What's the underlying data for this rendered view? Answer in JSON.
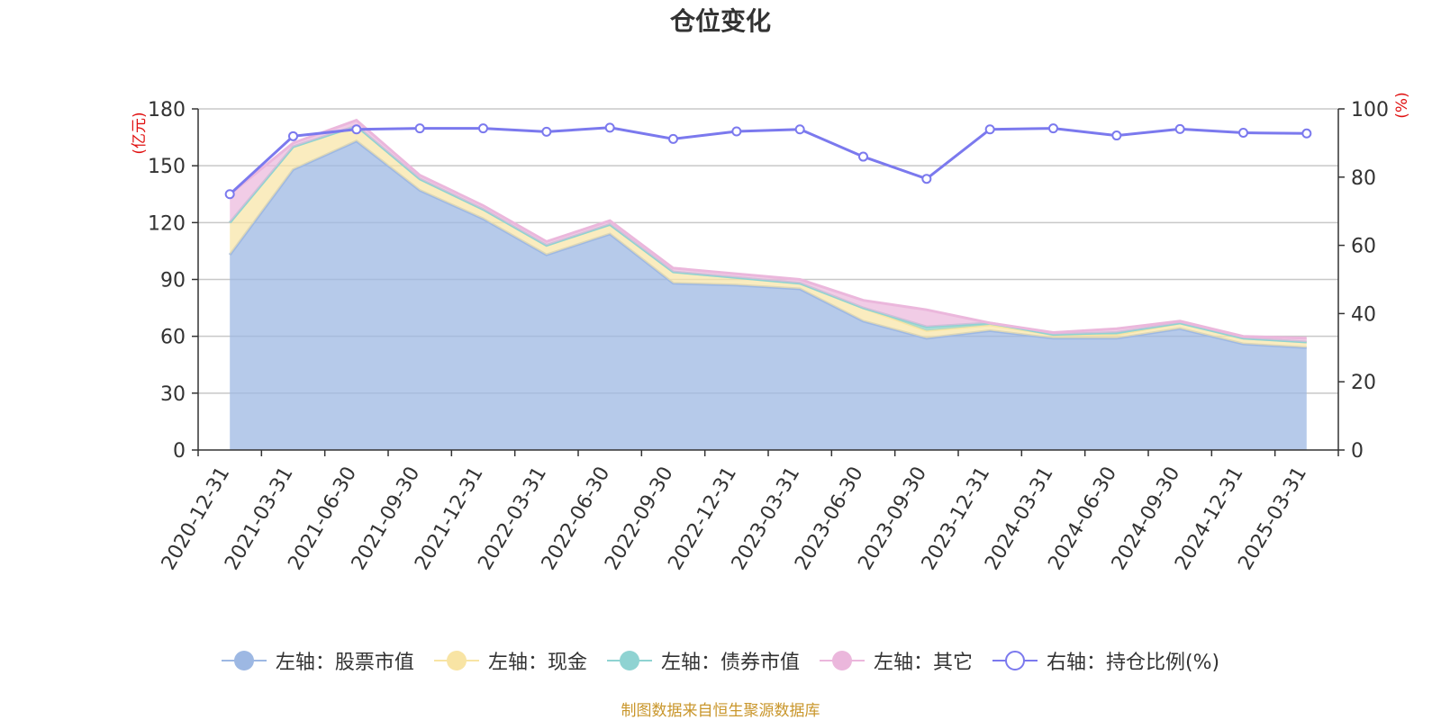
{
  "chart_data": {
    "type": "area",
    "title": "仓位变化",
    "left_axis_label": "(亿元)",
    "right_axis_label": "(%)",
    "left_ylim": [
      0,
      180
    ],
    "left_ticks": [
      0,
      30,
      60,
      90,
      120,
      150,
      180
    ],
    "right_ylim": [
      0,
      100
    ],
    "right_ticks": [
      0,
      20,
      40,
      60,
      80,
      100
    ],
    "categories": [
      "2020-12-31",
      "2021-03-31",
      "2021-06-30",
      "2021-09-30",
      "2021-12-31",
      "2022-03-31",
      "2022-06-30",
      "2022-09-30",
      "2022-12-31",
      "2023-03-31",
      "2023-06-30",
      "2023-09-30",
      "2023-12-31",
      "2024-03-31",
      "2024-06-30",
      "2024-09-30",
      "2024-12-31",
      "2025-03-31"
    ],
    "stacked_series": [
      {
        "name": "左轴：股票市值",
        "color": "#9db8e3",
        "values": [
          103,
          148,
          163,
          137,
          122,
          103,
          114,
          88,
          87,
          85,
          68,
          59,
          63,
          59,
          59,
          64,
          56,
          54
        ]
      },
      {
        "name": "左轴：现金",
        "color": "#f8e4a4",
        "values": [
          17,
          12,
          8,
          6,
          5,
          5,
          5,
          6,
          4,
          3,
          7,
          4,
          3,
          2,
          2,
          3,
          3,
          3
        ]
      },
      {
        "name": "左轴：债券市值",
        "color": "#8fd3d2",
        "values": [
          0,
          0,
          0,
          0,
          0,
          0,
          0,
          0,
          0,
          0,
          0,
          2,
          1,
          0,
          1,
          0,
          0,
          0
        ]
      },
      {
        "name": "左轴：其它",
        "color": "#ebb7dc",
        "values": [
          15,
          2,
          3,
          2,
          2,
          2,
          2,
          2,
          2,
          2,
          4,
          9,
          0,
          1,
          2,
          1,
          1,
          2
        ]
      }
    ],
    "line_series": {
      "name": "右轴：持仓比例(%)",
      "color": "#7b79ee",
      "values": [
        75,
        92,
        94,
        94.3,
        94.3,
        93.3,
        94.5,
        91.2,
        93.4,
        94,
        86,
        79.5,
        94,
        94.3,
        92.2,
        94.1,
        93,
        92.8
      ]
    }
  },
  "legend": [
    {
      "label": "左轴：股票市值",
      "color": "#9db8e3",
      "style": "filled"
    },
    {
      "label": "左轴：现金",
      "color": "#f8e4a4",
      "style": "filled"
    },
    {
      "label": "左轴：债券市值",
      "color": "#8fd3d2",
      "style": "filled"
    },
    {
      "label": "左轴：其它",
      "color": "#ebb7dc",
      "style": "filled"
    },
    {
      "label": "右轴：持仓比例(%)",
      "color": "#7b79ee",
      "style": "hollow"
    }
  ],
  "source_note": "制图数据来自恒生聚源数据库"
}
